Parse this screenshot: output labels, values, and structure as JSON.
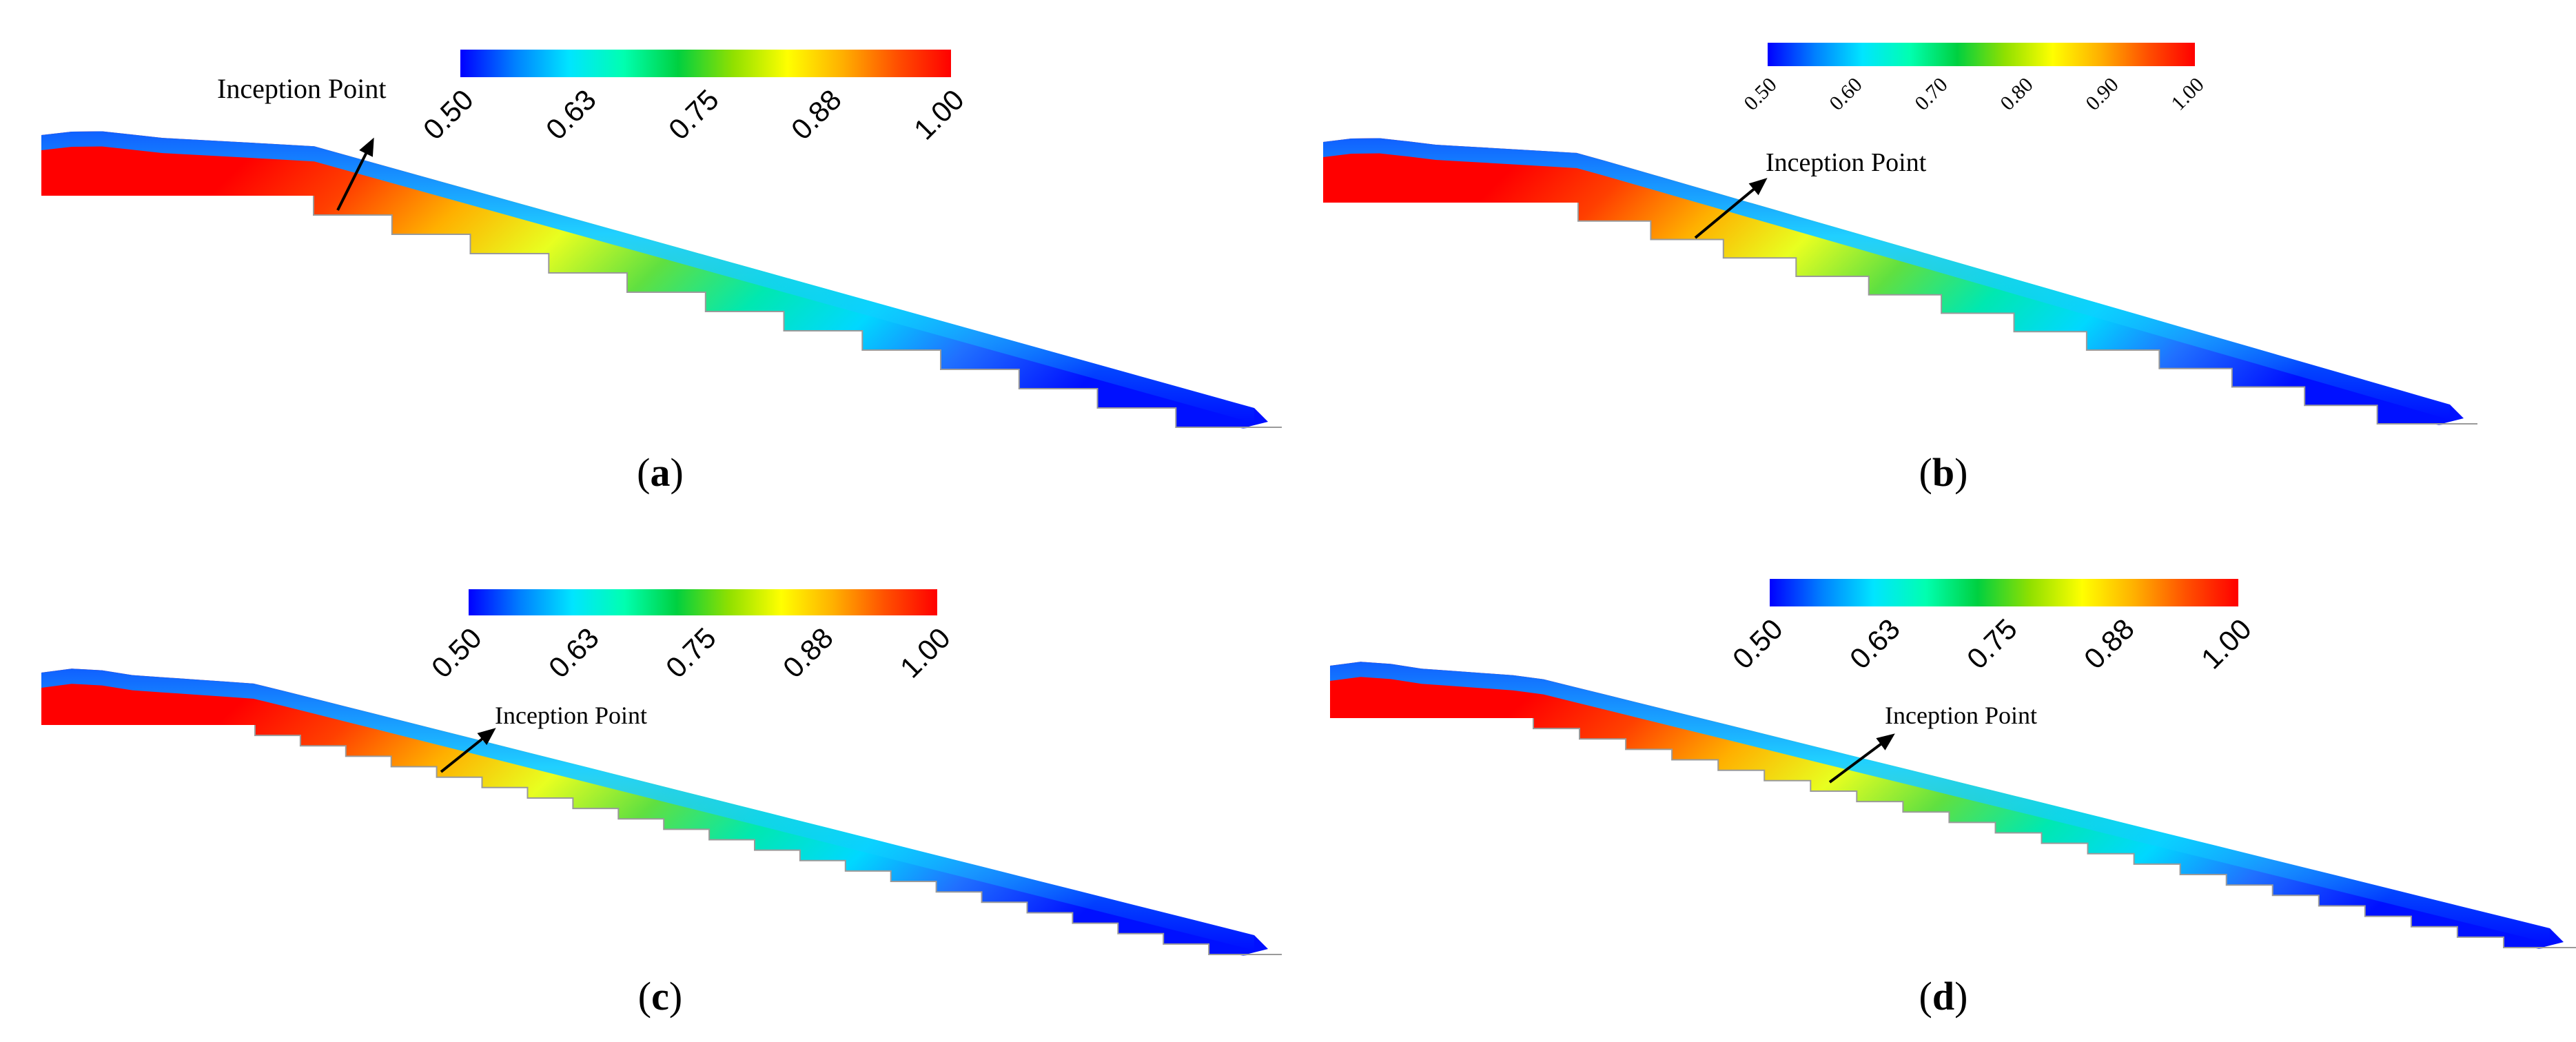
{
  "panels": [
    {
      "id": "a",
      "label": "(a)",
      "label_letter": "a",
      "annotation": "Inception Point",
      "colorbar": {
        "min": 0.5,
        "max": 1.0,
        "ticks": [
          "0.50",
          "0.63",
          "0.75",
          "0.88",
          "1.00"
        ]
      },
      "steps": 12
    },
    {
      "id": "b",
      "label": "(b)",
      "label_letter": "b",
      "annotation": "Inception Point",
      "colorbar": {
        "min": 0.5,
        "max": 1.0,
        "ticks": [
          "0.50",
          "0.60",
          "0.70",
          "0.80",
          "0.90",
          "1.00"
        ]
      },
      "steps": 12
    },
    {
      "id": "c",
      "label": "(c)",
      "label_letter": "c",
      "annotation": "Inception Point",
      "colorbar": {
        "min": 0.5,
        "max": 1.0,
        "ticks": [
          "0.50",
          "0.63",
          "0.75",
          "0.88",
          "1.00"
        ]
      },
      "steps": 22
    },
    {
      "id": "d",
      "label": "(d)",
      "label_letter": "d",
      "annotation": "Inception Point",
      "colorbar": {
        "min": 0.5,
        "max": 1.0,
        "ticks": [
          "0.50",
          "0.63",
          "0.75",
          "0.88",
          "1.00"
        ]
      },
      "steps": 22
    }
  ],
  "colormap": [
    "#0000ff",
    "#0080ff",
    "#00e5ff",
    "#00ffb0",
    "#00d040",
    "#90e000",
    "#ffff00",
    "#ffb000",
    "#ff5000",
    "#ff0000"
  ]
}
